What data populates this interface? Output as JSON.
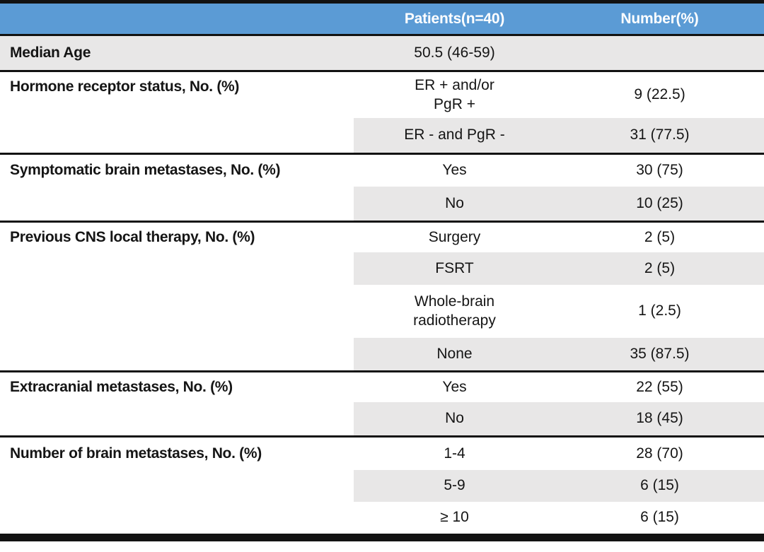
{
  "table": {
    "header": {
      "patients_label": "Patients(n=40)",
      "number_label": "Number(%)"
    },
    "sections": [
      {
        "label": "Median Age",
        "rows": [
          {
            "value": "50.5 (46-59)",
            "number": ""
          }
        ]
      },
      {
        "label": "Hormone receptor status, No. (%)",
        "rows": [
          {
            "value": "ER + and/or\nPgR +",
            "number": "9 (22.5)"
          },
          {
            "value": "ER - and PgR -",
            "number": "31 (77.5)"
          }
        ]
      },
      {
        "label": "Symptomatic brain metastases, No. (%)",
        "rows": [
          {
            "value": "Yes",
            "number": "30 (75)"
          },
          {
            "value": "No",
            "number": "10 (25)"
          }
        ]
      },
      {
        "label": "Previous CNS local therapy, No. (%)",
        "rows": [
          {
            "value": "Surgery",
            "number": "2 (5)"
          },
          {
            "value": "FSRT",
            "number": "2 (5)"
          },
          {
            "value": "Whole-brain\nradiotherapy",
            "number": "1 (2.5)"
          },
          {
            "value": "None",
            "number": "35 (87.5)"
          }
        ]
      },
      {
        "label": "Extracranial metastases, No. (%)",
        "rows": [
          {
            "value": "Yes",
            "number": "22 (55)"
          },
          {
            "value": "No",
            "number": "18 (45)"
          }
        ]
      },
      {
        "label": "Number of brain metastases, No. (%)",
        "rows": [
          {
            "value": "1-4",
            "number": "28 (70)"
          },
          {
            "value": "5-9",
            "number": "6 (15)"
          },
          {
            "value": "≥ 10",
            "number": "6 (15)"
          }
        ]
      }
    ]
  },
  "colors": {
    "header_bg": "#5b9bd5",
    "header_text": "#ffffff",
    "shaded_cell_bg": "#e8e7e7",
    "rule_color": "#121212",
    "body_text": "#151515"
  }
}
